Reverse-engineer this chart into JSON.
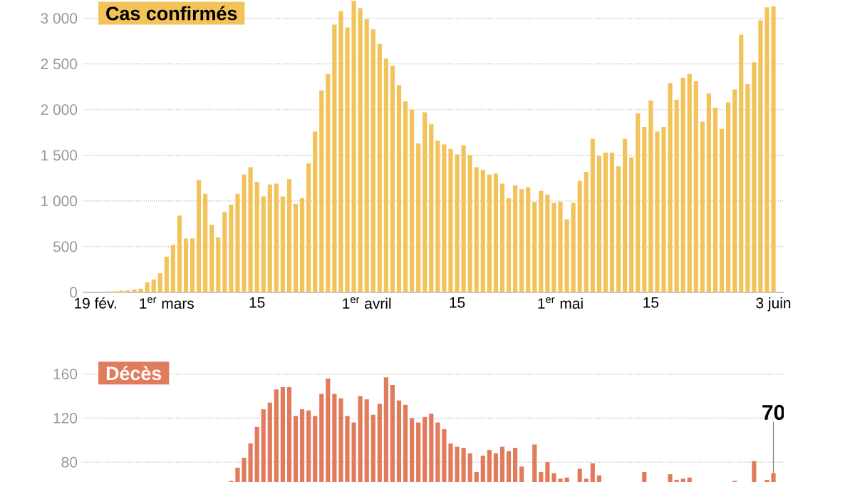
{
  "chart_data": [
    {
      "type": "bar",
      "title": "Cas confirmés",
      "color": "#f2c35a",
      "categories": [
        "19 fév.",
        null,
        null,
        null,
        null,
        null,
        null,
        null,
        null,
        null,
        null,
        "1$^{er}$ mars",
        null,
        null,
        null,
        null,
        null,
        null,
        null,
        null,
        null,
        null,
        null,
        null,
        null,
        "15",
        null,
        null,
        null,
        null,
        null,
        null,
        null,
        null,
        null,
        null,
        null,
        null,
        null,
        null,
        null,
        null,
        "1$^{er}$ avril",
        null,
        null,
        null,
        null,
        null,
        null,
        null,
        null,
        null,
        null,
        null,
        null,
        null,
        "15",
        null,
        null,
        null,
        null,
        null,
        null,
        null,
        null,
        null,
        null,
        null,
        null,
        null,
        null,
        null,
        "1$^{er}$ mai",
        null,
        null,
        null,
        null,
        null,
        null,
        null,
        null,
        null,
        null,
        null,
        null,
        null,
        "15",
        null,
        null,
        null,
        null,
        null,
        null,
        null,
        null,
        null,
        null,
        null,
        null,
        null,
        null,
        null,
        null,
        null,
        null,
        "3 juin"
      ],
      "values": [
        0,
        0,
        10,
        10,
        20,
        20,
        30,
        40,
        110,
        140,
        210,
        390,
        520,
        840,
        590,
        590,
        1230,
        1080,
        740,
        600,
        880,
        960,
        1080,
        1290,
        1370,
        1210,
        1050,
        1180,
        1190,
        1050,
        1240,
        970,
        1030,
        1410,
        1760,
        2210,
        2390,
        2930,
        3080,
        2900,
        3190,
        3110,
        2990,
        2880,
        2720,
        2560,
        2480,
        2270,
        2090,
        2000,
        1630,
        1970,
        1840,
        1660,
        1620,
        1570,
        1510,
        1610,
        1500,
        1370,
        1340,
        1290,
        1300,
        1190,
        1030,
        1170,
        1130,
        1150,
        990,
        1110,
        1070,
        980,
        990,
        800,
        980,
        1220,
        1320,
        1680,
        1490,
        1530,
        1530,
        1380,
        1680,
        1480,
        1960,
        1810,
        2100,
        1760,
        1810,
        2290,
        2110,
        2350,
        2390,
        2310,
        1870,
        2180,
        2020,
        1790,
        2080,
        2220,
        2820,
        2280,
        2520,
        2980,
        3120,
        3130
      ],
      "ylim": [
        0,
        3200
      ],
      "yticks": [
        0,
        {
          "value": 500,
          "label": "500"
        },
        {
          "value": 1000,
          "label": "1 000"
        },
        {
          "value": 1500,
          "label": "1 500"
        },
        {
          "value": 2000,
          "label": "2 000"
        },
        {
          "value": 2500,
          "label": "2 500"
        },
        {
          "value": 3000,
          "label": "3 000"
        }
      ],
      "grid": "y"
    },
    {
      "type": "bar",
      "title": "Décès",
      "color": "#e07b5c",
      "categories": [
        null,
        null,
        null,
        null,
        null,
        null,
        null,
        null,
        null,
        null,
        null,
        null,
        null,
        null,
        null,
        null,
        null,
        null,
        null,
        null,
        null,
        null,
        null,
        null,
        null,
        null,
        null,
        null,
        null,
        null,
        null,
        null,
        null,
        null,
        null,
        null,
        null,
        null,
        null,
        null,
        null,
        null,
        null,
        null,
        null,
        null,
        null,
        null,
        null,
        null,
        null,
        null,
        null,
        null,
        null,
        null,
        null,
        null,
        null,
        null,
        null,
        null,
        null,
        null,
        null,
        null,
        null,
        null,
        null,
        null,
        null,
        null,
        null,
        null,
        null,
        null,
        null,
        null,
        null,
        null,
        null,
        null,
        null,
        null,
        null,
        null,
        null,
        null,
        null,
        null,
        null,
        null,
        null,
        null,
        null,
        null,
        null,
        null,
        null,
        null,
        null,
        null,
        null,
        null,
        null,
        null
      ],
      "values": [
        null,
        null,
        null,
        null,
        null,
        null,
        null,
        null,
        null,
        null,
        null,
        null,
        null,
        null,
        null,
        null,
        null,
        null,
        null,
        null,
        null,
        63,
        75,
        84,
        97,
        112,
        128,
        134,
        146,
        148,
        148,
        122,
        128,
        127,
        122,
        142,
        156,
        142,
        138,
        122,
        116,
        140,
        137,
        123,
        133,
        157,
        150,
        136,
        132,
        120,
        116,
        121,
        124,
        116,
        110,
        97,
        94,
        93,
        88,
        71,
        86,
        91,
        88,
        94,
        90,
        93,
        76,
        null,
        96,
        71,
        80,
        70,
        65,
        66,
        null,
        74,
        65,
        79,
        68,
        null,
        null,
        null,
        null,
        null,
        null,
        71,
        null,
        null,
        null,
        69,
        64,
        65,
        66,
        null,
        null,
        null,
        null,
        null,
        null,
        63,
        null,
        null,
        81,
        null,
        64,
        70
      ],
      "value_labels": [
        null,
        null,
        null,
        null,
        null,
        null,
        null,
        null,
        null,
        null,
        null,
        null,
        null,
        null,
        null,
        null,
        null,
        null,
        null,
        null,
        null,
        null,
        null,
        null,
        null,
        null,
        null,
        null,
        null,
        null,
        null,
        null,
        null,
        null,
        null,
        null,
        null,
        null,
        null,
        null,
        null,
        null,
        null,
        null,
        null,
        null,
        null,
        null,
        null,
        null,
        null,
        null,
        null,
        null,
        null,
        null,
        null,
        null,
        null,
        null,
        null,
        null,
        null,
        null,
        null,
        null,
        null,
        null,
        null,
        null,
        null,
        null,
        null,
        null,
        null,
        null,
        null,
        null,
        null,
        null,
        null,
        null,
        null,
        null,
        null,
        null,
        null,
        null,
        null,
        null,
        null,
        null,
        null,
        null,
        null,
        null,
        null,
        null,
        null,
        null,
        null,
        null,
        null,
        null,
        null,
        "70"
      ],
      "ylim": [
        62,
        172
      ],
      "yticks": [
        80,
        120,
        160
      ],
      "grid": "y",
      "tick_labels": "y"
    }
  ]
}
